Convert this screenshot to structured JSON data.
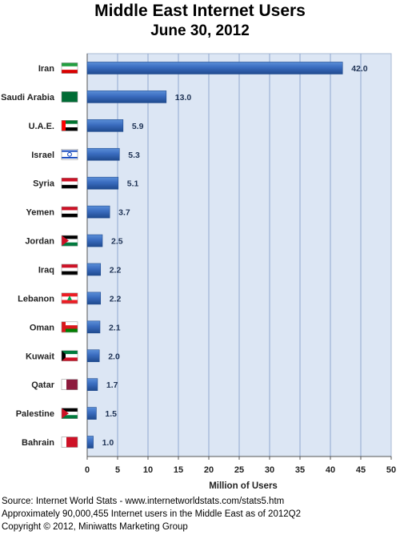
{
  "title": "Middle East Internet Users",
  "subtitle": "June 30, 2012",
  "footer": {
    "source": "Source: Internet World Stats  -  www.internetworldstats.com/stats5.htm",
    "note": "Approximately 90,000,455 Internet users in the Middle East as of 2012Q2",
    "copyright": "Copyright © 2012, Miniwatts Marketing Group"
  },
  "chart_data": {
    "type": "bar",
    "orientation": "horizontal",
    "title": "Middle East Internet Users",
    "subtitle": "June 30, 2012",
    "xlabel": "Million of Users",
    "ylabel": "",
    "xlim": [
      0,
      50
    ],
    "xticks": [
      0,
      5,
      10,
      15,
      20,
      25,
      30,
      35,
      40,
      45,
      50
    ],
    "grid": true,
    "categories": [
      "Iran",
      "Saudi Arabia",
      "U.A.E.",
      "Israel",
      "Syria",
      "Yemen",
      "Jordan",
      "Iraq",
      "Lebanon",
      "Oman",
      "Kuwait",
      "Qatar",
      "Palestine",
      "Bahrain"
    ],
    "values": [
      42.0,
      13.0,
      5.9,
      5.3,
      5.1,
      3.7,
      2.5,
      2.2,
      2.2,
      2.1,
      2.0,
      1.7,
      1.5,
      1.0
    ],
    "value_labels": [
      "42.0",
      "13.0",
      "5.9",
      "5.3",
      "5.1",
      "3.7",
      "2.5",
      "2.2",
      "2.2",
      "2.1",
      "2.0",
      "1.7",
      "1.5",
      "1.0"
    ],
    "colors": {
      "bar": "#3a6cbf",
      "bar_dark": "#1f4a8e",
      "plot_bg": "#dce6f4",
      "grid": "#8fa8d0"
    }
  }
}
